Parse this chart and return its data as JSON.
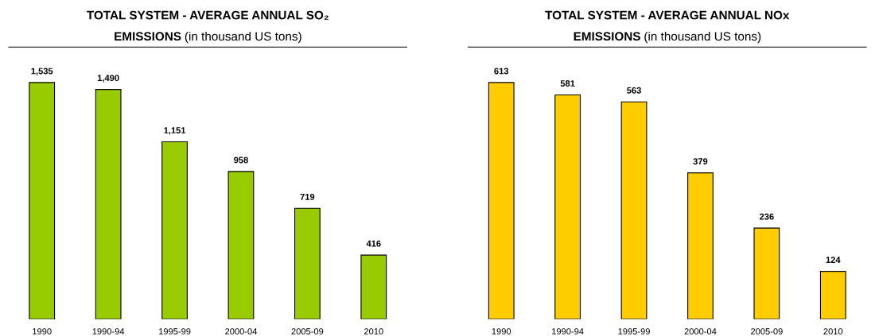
{
  "chart_data": [
    {
      "type": "bar",
      "title": "TOTAL SYSTEM - AVERAGE ANNUAL SO₂ EMISSIONS",
      "subtitle": "(in thousand US tons)",
      "categories": [
        "1990",
        "1990-94",
        "1995-99",
        "2000-04",
        "2005-09",
        "2010"
      ],
      "values": [
        1535,
        1490,
        1151,
        958,
        719,
        416
      ],
      "value_labels": [
        "1,535",
        "1,490",
        "1,151",
        "958",
        "719",
        "416"
      ],
      "color": "#99cc00",
      "grid": false,
      "legend": false
    },
    {
      "type": "bar",
      "title": "TOTAL SYSTEM - AVERAGE ANNUAL NOx EMISSIONS",
      "subtitle": "(in thousand US tons)",
      "categories": [
        "1990",
        "1990-94",
        "1995-99",
        "2000-04",
        "2005-09",
        "2010"
      ],
      "values": [
        613,
        581,
        563,
        379,
        236,
        124
      ],
      "value_labels": [
        "613",
        "581",
        "563",
        "379",
        "236",
        "124"
      ],
      "color": "#ffcc00",
      "grid": false,
      "legend": false
    }
  ]
}
